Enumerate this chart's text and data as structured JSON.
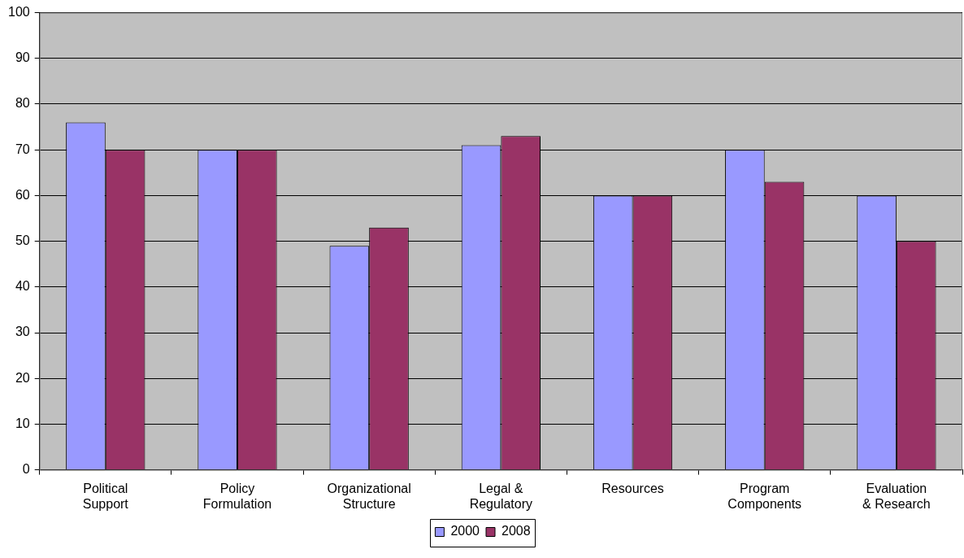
{
  "chart_data": {
    "type": "bar",
    "categories": [
      "Political Support",
      "Policy Formulation",
      "Organizational Structure",
      "Legal & Regulatory",
      "Resources",
      "Program Components",
      "Evaluation & Research"
    ],
    "series": [
      {
        "name": "2000",
        "color": "#9999ff",
        "values": [
          76,
          70,
          49,
          71,
          60,
          70,
          60
        ]
      },
      {
        "name": "2008",
        "color": "#993366",
        "values": [
          70,
          70,
          53,
          73,
          60,
          63,
          50
        ]
      }
    ],
    "ylim": [
      0,
      100
    ],
    "yticks": [
      0,
      10,
      20,
      30,
      40,
      50,
      60,
      70,
      80,
      90,
      100
    ],
    "grid": "y",
    "legend": "bottom"
  }
}
